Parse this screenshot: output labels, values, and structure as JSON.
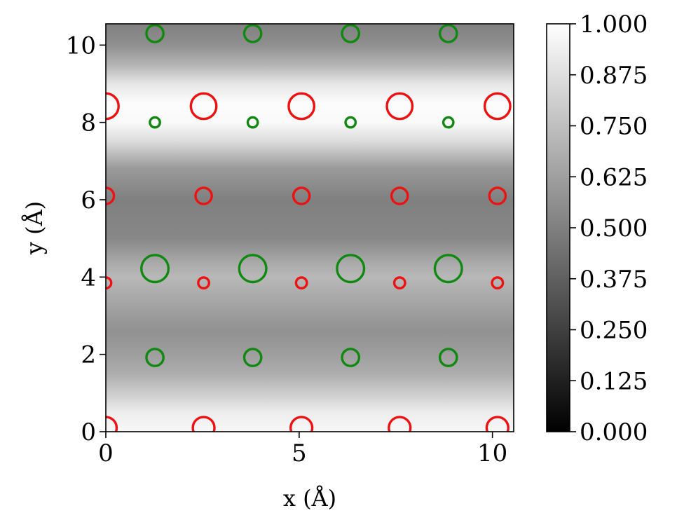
{
  "chart_data": {
    "type": "heatmap",
    "title": "",
    "xlabel": "x (Å)",
    "ylabel": "y (Å)",
    "xlim": [
      0,
      10.55
    ],
    "ylim": [
      0,
      10.55
    ],
    "xticks": [
      0,
      5,
      10
    ],
    "xtick_labels": [
      "0",
      "5",
      "10"
    ],
    "yticks": [
      0,
      2,
      4,
      6,
      8,
      10
    ],
    "ytick_labels": [
      "0",
      "2",
      "4",
      "6",
      "8",
      "10"
    ],
    "grid": false,
    "colormap": "gray",
    "colorbar": {
      "range": [
        0,
        1
      ],
      "ticks": [
        0,
        0.125,
        0.25,
        0.375,
        0.5,
        0.625,
        0.75,
        0.875,
        1.0
      ],
      "tick_labels": [
        "0.000",
        "0.125",
        "0.250",
        "0.375",
        "0.500",
        "0.625",
        "0.750",
        "0.875",
        "1.000"
      ]
    },
    "intensity_profile": [
      {
        "y": 0.0,
        "v": 0.97
      },
      {
        "y": 0.5,
        "v": 0.93
      },
      {
        "y": 1.0,
        "v": 0.8
      },
      {
        "y": 1.5,
        "v": 0.68
      },
      {
        "y": 2.0,
        "v": 0.62
      },
      {
        "y": 2.6,
        "v": 0.57
      },
      {
        "y": 3.2,
        "v": 0.63
      },
      {
        "y": 4.0,
        "v": 0.72
      },
      {
        "y": 4.4,
        "v": 0.66
      },
      {
        "y": 5.0,
        "v": 0.53
      },
      {
        "y": 6.0,
        "v": 0.5
      },
      {
        "y": 6.8,
        "v": 0.6
      },
      {
        "y": 7.5,
        "v": 0.86
      },
      {
        "y": 8.0,
        "v": 0.98
      },
      {
        "y": 8.5,
        "v": 0.99
      },
      {
        "y": 9.0,
        "v": 0.9
      },
      {
        "y": 9.5,
        "v": 0.7
      },
      {
        "y": 10.0,
        "v": 0.56
      },
      {
        "y": 10.55,
        "v": 0.5
      }
    ],
    "atom_colors": {
      "red": "#ee1111",
      "green": "#118811"
    },
    "series": [
      {
        "color": "red",
        "points": [
          {
            "x": 0.0,
            "y": 0.1,
            "r": 0.28
          },
          {
            "x": 2.53,
            "y": 0.1,
            "r": 0.28
          },
          {
            "x": 5.06,
            "y": 0.1,
            "r": 0.28
          },
          {
            "x": 7.6,
            "y": 0.1,
            "r": 0.28
          },
          {
            "x": 10.13,
            "y": 0.1,
            "r": 0.28
          },
          {
            "x": 0.0,
            "y": 3.85,
            "r": 0.14
          },
          {
            "x": 2.53,
            "y": 3.85,
            "r": 0.14
          },
          {
            "x": 5.06,
            "y": 3.85,
            "r": 0.14
          },
          {
            "x": 7.6,
            "y": 3.85,
            "r": 0.14
          },
          {
            "x": 10.13,
            "y": 3.85,
            "r": 0.14
          },
          {
            "x": 0.0,
            "y": 6.1,
            "r": 0.21
          },
          {
            "x": 2.53,
            "y": 6.1,
            "r": 0.21
          },
          {
            "x": 5.06,
            "y": 6.1,
            "r": 0.21
          },
          {
            "x": 7.6,
            "y": 6.1,
            "r": 0.21
          },
          {
            "x": 10.13,
            "y": 6.1,
            "r": 0.21
          },
          {
            "x": 0.0,
            "y": 8.42,
            "r": 0.33
          },
          {
            "x": 2.53,
            "y": 8.42,
            "r": 0.33
          },
          {
            "x": 5.06,
            "y": 8.42,
            "r": 0.33
          },
          {
            "x": 7.6,
            "y": 8.42,
            "r": 0.33
          },
          {
            "x": 10.13,
            "y": 8.42,
            "r": 0.33
          }
        ]
      },
      {
        "color": "green",
        "points": [
          {
            "x": 1.27,
            "y": 1.92,
            "r": 0.22
          },
          {
            "x": 3.8,
            "y": 1.92,
            "r": 0.22
          },
          {
            "x": 6.33,
            "y": 1.92,
            "r": 0.22
          },
          {
            "x": 8.86,
            "y": 1.92,
            "r": 0.22
          },
          {
            "x": 1.27,
            "y": 4.22,
            "r": 0.35
          },
          {
            "x": 3.8,
            "y": 4.22,
            "r": 0.35
          },
          {
            "x": 6.33,
            "y": 4.22,
            "r": 0.35
          },
          {
            "x": 8.86,
            "y": 4.22,
            "r": 0.35
          },
          {
            "x": 1.27,
            "y": 8.0,
            "r": 0.13
          },
          {
            "x": 3.8,
            "y": 8.0,
            "r": 0.13
          },
          {
            "x": 6.33,
            "y": 8.0,
            "r": 0.13
          },
          {
            "x": 8.86,
            "y": 8.0,
            "r": 0.13
          },
          {
            "x": 1.27,
            "y": 10.3,
            "r": 0.22
          },
          {
            "x": 3.8,
            "y": 10.3,
            "r": 0.22
          },
          {
            "x": 6.33,
            "y": 10.3,
            "r": 0.22
          },
          {
            "x": 8.86,
            "y": 10.3,
            "r": 0.22
          }
        ]
      }
    ]
  }
}
